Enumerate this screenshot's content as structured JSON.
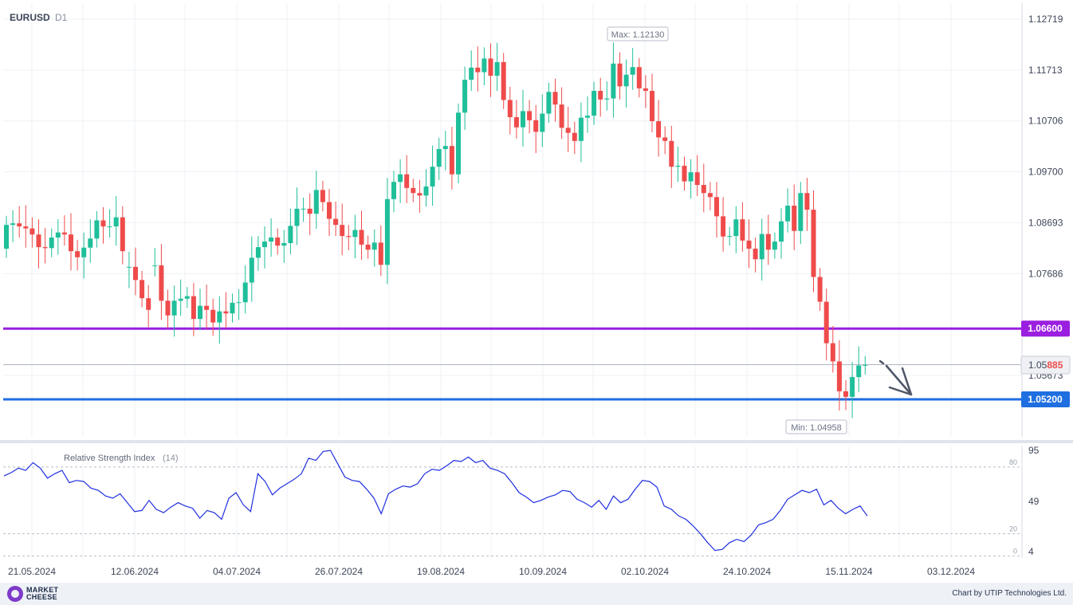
{
  "chart_data": [
    {
      "type": "candlestick",
      "symbol": "EURUSD",
      "timeframe": "D1",
      "y_ticks": [
        "1.12719",
        "1.11713",
        "1.10706",
        "1.09700",
        "1.08693",
        "1.07686",
        "1.05673"
      ],
      "x_ticks": [
        "21.05.2024",
        "12.06.2024",
        "04.07.2024",
        "26.07.2024",
        "19.08.2024",
        "10.09.2024",
        "02.10.2024",
        "24.10.2024",
        "15.11.2024",
        "03.12.2024"
      ],
      "ylim": [
        1.0452,
        1.13
      ],
      "max_label": "Max: 1.12130",
      "min_label": "Min: 1.04958",
      "current_price": "1.05885",
      "levels": [
        {
          "value": 1.066,
          "label": "1.06600",
          "color": "#9b1fe0"
        },
        {
          "value": 1.052,
          "label": "1.05200",
          "color": "#1f6fe0"
        }
      ],
      "up_color": "#1fbf9a",
      "down_color": "#ef4b4b",
      "closes": [
        1.0865,
        1.0868,
        1.0862,
        1.0858,
        1.0846,
        1.0821,
        1.0819,
        1.084,
        1.085,
        1.0846,
        1.0813,
        1.0801,
        1.082,
        1.0838,
        1.0874,
        1.0862,
        1.0862,
        1.088,
        1.0813,
        1.0782,
        1.0756,
        1.072,
        1.0697,
        1.0785,
        1.0715,
        1.0686,
        1.0715,
        1.0719,
        1.0724,
        1.0679,
        1.0705,
        1.0697,
        1.0672,
        1.0694,
        1.069,
        1.0711,
        1.0712,
        1.0751,
        1.08,
        1.0821,
        1.0832,
        1.084,
        1.0824,
        1.0829,
        1.0863,
        1.0897,
        1.0897,
        1.0887,
        1.0934,
        1.091,
        1.0877,
        1.0865,
        1.0843,
        1.0841,
        1.0855,
        1.0826,
        1.0816,
        1.083,
        1.0786,
        1.0916,
        1.095,
        1.0965,
        1.0938,
        1.0928,
        1.0923,
        1.0941,
        1.098,
        1.1015,
        1.1021,
        1.0965,
        1.1087,
        1.1152,
        1.1176,
        1.1167,
        1.1194,
        1.116,
        1.1187,
        1.1112,
        1.1078,
        1.1058,
        1.109,
        1.1072,
        1.1049,
        1.1085,
        1.1128,
        1.1103,
        1.1057,
        1.1047,
        1.1031,
        1.1077,
        1.1081,
        1.113,
        1.1113,
        1.1115,
        1.1184,
        1.1139,
        1.1162,
        1.1177,
        1.1135,
        1.113,
        1.107,
        1.1038,
        1.1031,
        1.098,
        1.0982,
        1.0951,
        1.0969,
        1.0944,
        1.0928,
        1.092,
        1.0882,
        1.0842,
        1.0843,
        1.0876,
        1.0834,
        1.0818,
        1.0797,
        1.0847,
        1.0816,
        1.0832,
        1.0872,
        1.0903,
        1.0853,
        1.0928,
        1.0895,
        1.0762,
        1.0713,
        1.0631,
        1.0595,
        1.0536,
        1.0525,
        1.0564,
        1.0587,
        1.0588
      ],
      "opens": [
        1.0818,
        1.0865,
        1.0868,
        1.0862,
        1.0858,
        1.0846,
        1.0821,
        1.0819,
        1.084,
        1.085,
        1.0846,
        1.0813,
        1.0801,
        1.082,
        1.0838,
        1.0874,
        1.0862,
        1.0862,
        1.088,
        1.0782,
        1.0782,
        1.0756,
        1.072,
        1.0785,
        1.0785,
        1.0715,
        1.0686,
        1.0715,
        1.0719,
        1.0724,
        1.0679,
        1.0705,
        1.0697,
        1.0672,
        1.0694,
        1.069,
        1.0711,
        1.0712,
        1.0751,
        1.08,
        1.0821,
        1.0832,
        1.084,
        1.0824,
        1.0829,
        1.0863,
        1.0897,
        1.0897,
        1.0887,
        1.0934,
        1.091,
        1.0877,
        1.0865,
        1.0843,
        1.0841,
        1.0855,
        1.0826,
        1.0816,
        1.083,
        1.0786,
        1.0916,
        1.095,
        1.0965,
        1.0938,
        1.0928,
        1.0923,
        1.0941,
        1.098,
        1.1015,
        1.1021,
        1.0965,
        1.1087,
        1.1152,
        1.1176,
        1.1167,
        1.1194,
        1.116,
        1.1187,
        1.1112,
        1.1078,
        1.1058,
        1.109,
        1.1072,
        1.1049,
        1.1085,
        1.1128,
        1.1103,
        1.1057,
        1.1047,
        1.1031,
        1.1077,
        1.1081,
        1.113,
        1.1113,
        1.1115,
        1.1184,
        1.1139,
        1.1162,
        1.1177,
        1.1135,
        1.113,
        1.107,
        1.1038,
        1.1031,
        1.098,
        1.0982,
        1.0951,
        1.0969,
        1.0944,
        1.0928,
        1.092,
        1.0882,
        1.0842,
        1.0843,
        1.0876,
        1.0834,
        1.0818,
        1.0797,
        1.0847,
        1.0816,
        1.0832,
        1.0872,
        1.0903,
        1.0853,
        1.0928,
        1.0895,
        1.0762,
        1.0713,
        1.0631,
        1.0595,
        1.0536,
        1.0525,
        1.0564,
        1.0587
      ]
    },
    {
      "type": "line",
      "title": "Relative Strength Index",
      "period": "(14)",
      "y_ticks": [
        "95",
        "49",
        "4"
      ],
      "ylim": [
        4,
        95
      ],
      "levels": [
        {
          "value": 80,
          "label": "80"
        },
        {
          "value": 20,
          "label": "20"
        },
        {
          "value": 0,
          "label": "0"
        }
      ],
      "series": [
        {
          "color": "#1f2fe0",
          "values": [
            72,
            75,
            79,
            77,
            84,
            79,
            70,
            74,
            77,
            66,
            68,
            67,
            61,
            59,
            54,
            52,
            56,
            48,
            40,
            41,
            50,
            42,
            39,
            44,
            48,
            45,
            43,
            34,
            41,
            39,
            33,
            52,
            57,
            46,
            40,
            74,
            67,
            55,
            61,
            65,
            69,
            74,
            88,
            86,
            94,
            95,
            83,
            71,
            68,
            67,
            60,
            52,
            38,
            56,
            60,
            63,
            62,
            65,
            74,
            78,
            77,
            81,
            86,
            85,
            89,
            84,
            86,
            79,
            77,
            74,
            66,
            57,
            53,
            48,
            50,
            53,
            55,
            59,
            58,
            51,
            48,
            44,
            50,
            42,
            54,
            48,
            51,
            60,
            68,
            67,
            62,
            45,
            42,
            36,
            33,
            27,
            20,
            12,
            5,
            6,
            12,
            15,
            13,
            19,
            28,
            30,
            33,
            41,
            51,
            55,
            59,
            57,
            60,
            46,
            50,
            43,
            38,
            42,
            45,
            36
          ]
        }
      ]
    }
  ]
}
